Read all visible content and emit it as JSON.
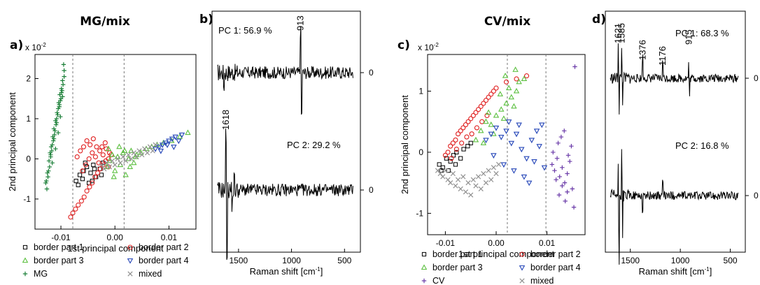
{
  "figure": {
    "left_title": "MG/mix",
    "right_title": "CV/mix",
    "panel_labels": {
      "a": "a)",
      "b": "b)",
      "c": "c)",
      "d": "d)"
    }
  },
  "chart_data": [
    {
      "panel": "a",
      "type": "scatter",
      "title": "MG/mix",
      "xlabel": "1st principal component",
      "ylabel": "2nd principal component",
      "multiplier": "x 10^-2",
      "xlim": [
        -0.0148,
        0.015
      ],
      "ylim": [
        -1.75,
        2.6
      ],
      "xticks": [
        {
          "v": -0.01,
          "label": "-0.01"
        },
        {
          "v": 0.0,
          "label": "0.00"
        },
        {
          "v": 0.01,
          "label": "0.01"
        }
      ],
      "yticks": [
        {
          "v": -1,
          "label": "-1"
        },
        {
          "v": 0,
          "label": "0"
        },
        {
          "v": 1,
          "label": "1"
        },
        {
          "v": 2,
          "label": "2"
        }
      ],
      "vlines": [
        -0.0078,
        0.0017
      ],
      "series": [
        {
          "name": "MG",
          "marker": "plus",
          "color": "#1a7f37",
          "x": [
            -0.0128,
            -0.0125,
            -0.0122,
            -0.012,
            -0.0118,
            -0.0115,
            -0.0113,
            -0.011,
            -0.0107,
            -0.0104,
            -0.0102,
            -0.0099,
            -0.0097,
            -0.0094,
            -0.0124,
            -0.0119,
            -0.0114,
            -0.0109,
            -0.0105,
            -0.01,
            -0.0096,
            -0.0126,
            -0.0121,
            -0.0117,
            -0.0112,
            -0.0108,
            -0.0103,
            -0.0098,
            -0.0123,
            -0.0116,
            -0.0111,
            -0.0106,
            -0.0101,
            -0.0095,
            -0.0127,
            -0.0119,
            -0.0113,
            -0.0108,
            -0.0103,
            -0.0099,
            -0.0094,
            -0.0116,
            -0.011,
            -0.0105,
            -0.0101,
            -0.0097
          ],
          "y": [
            -0.6,
            -0.35,
            -0.05,
            0.15,
            0.3,
            0.55,
            0.75,
            0.95,
            1.15,
            1.4,
            1.6,
            1.75,
            1.95,
            2.2,
            -0.45,
            0.05,
            0.45,
            0.85,
            1.25,
            1.5,
            1.85,
            -0.75,
            -0.2,
            0.2,
            0.6,
            1.0,
            1.3,
            1.7,
            -0.3,
            0.35,
            0.7,
            1.1,
            1.45,
            2.35,
            -0.55,
            0.1,
            0.5,
            0.9,
            1.35,
            1.65,
            2.05,
            -0.1,
            0.25,
            0.65,
            1.05,
            1.55
          ]
        },
        {
          "name": "border part 1",
          "marker": "square",
          "color": "#000000",
          "x": [
            -0.0072,
            -0.0065,
            -0.0058,
            -0.0052,
            -0.0045,
            -0.004,
            -0.0035,
            -0.0028,
            -0.0022,
            -0.0068,
            -0.006,
            -0.0048,
            -0.0038,
            -0.0025,
            -0.0055,
            -0.0042
          ],
          "y": [
            -0.55,
            -0.4,
            -0.3,
            -0.2,
            -0.35,
            -0.15,
            -0.45,
            -0.25,
            -0.1,
            -0.65,
            -0.5,
            -0.6,
            -0.25,
            -0.4,
            -0.1,
            -0.55
          ]
        },
        {
          "name": "border part 2",
          "marker": "circle",
          "color": "#e02020",
          "x": [
            -0.0082,
            -0.0078,
            -0.0073,
            -0.0068,
            -0.0062,
            -0.0057,
            -0.0052,
            -0.0047,
            -0.0042,
            -0.0037,
            -0.0032,
            -0.0027,
            -0.0022,
            -0.0017,
            -0.0012,
            -0.0007,
            -0.007,
            -0.0064,
            -0.0058,
            -0.0052,
            -0.0046,
            -0.004,
            -0.0034,
            -0.0028,
            -0.0022,
            -0.0016,
            -0.001,
            -0.006,
            -0.0054,
            -0.0048,
            -0.0042,
            -0.0036,
            -0.003,
            -0.0024,
            -0.0018,
            -0.0012
          ],
          "y": [
            -1.45,
            -1.35,
            -1.25,
            -1.15,
            -1.05,
            -0.95,
            -0.8,
            -0.7,
            -0.6,
            -0.45,
            -0.35,
            -0.25,
            -0.15,
            -0.05,
            0.0,
            0.1,
            0.05,
            0.2,
            0.3,
            0.45,
            0.35,
            0.5,
            0.3,
            0.2,
            0.1,
            0.25,
            0.15,
            -0.3,
            -0.15,
            0.0,
            0.15,
            0.05,
            -0.1,
            0.3,
            0.4,
            -0.2
          ]
        },
        {
          "name": "border part 3",
          "marker": "triangle-up",
          "color": "#5cc040",
          "x": [
            -0.0015,
            -0.001,
            -0.0005,
            0.0,
            0.0005,
            0.001,
            0.0015,
            0.002,
            0.0025,
            0.003,
            0.0035,
            0.004,
            -0.0012,
            -0.0002,
            0.0008,
            0.0018,
            0.0028,
            0.0038,
            0.0048,
            0.0058,
            0.0068,
            0.0078,
            0.009,
            0.0105,
            0.012,
            0.0135
          ],
          "y": [
            -0.2,
            -0.05,
            0.1,
            -0.3,
            0.05,
            -0.15,
            0.15,
            -0.4,
            0.0,
            0.2,
            -0.1,
            0.1,
            0.25,
            -0.45,
            0.3,
            0.2,
            -0.2,
            0.05,
            0.15,
            0.25,
            0.3,
            0.35,
            0.4,
            0.45,
            0.55,
            0.65
          ]
        },
        {
          "name": "border part 4",
          "marker": "triangle-down",
          "color": "#2546b8",
          "x": [
            0.0075,
            0.0082,
            0.0088,
            0.0094,
            0.01,
            0.0106,
            0.0112,
            0.0118,
            0.0124,
            0.0085,
            0.0097,
            0.0109
          ],
          "y": [
            0.25,
            0.3,
            0.35,
            0.4,
            0.45,
            0.5,
            0.55,
            0.45,
            0.6,
            0.2,
            0.35,
            0.3
          ]
        },
        {
          "name": "mixed",
          "marker": "cross",
          "color": "#909090",
          "x": [
            -0.0025,
            -0.0015,
            -0.0005,
            0.0005,
            0.0015,
            0.0025,
            0.0035,
            0.0045,
            0.0055,
            0.0065,
            0.0075,
            -0.002,
            -0.001,
            0.0,
            0.001,
            0.002,
            0.003,
            0.004,
            0.005,
            0.006,
            0.007
          ],
          "y": [
            -0.15,
            -0.1,
            -0.05,
            0.0,
            0.05,
            0.1,
            0.15,
            0.2,
            0.25,
            0.3,
            0.35,
            -0.25,
            -0.2,
            -0.15,
            -0.1,
            -0.05,
            0.0,
            0.05,
            0.1,
            0.15,
            0.2
          ]
        }
      ],
      "legend": [
        "border part 1",
        "border part 2",
        "border part 3",
        "border part 4",
        "MG",
        "mixed"
      ]
    },
    {
      "panel": "b",
      "type": "line",
      "xlabel": "Raman shift [cm-1]",
      "xticks": [
        {
          "v": 1500,
          "label": "1500"
        },
        {
          "v": 1000,
          "label": "1000"
        },
        {
          "v": 500,
          "label": "500"
        }
      ],
      "xlim": [
        1750,
        350
      ],
      "zero_label": "0",
      "series": [
        {
          "name": "PC 1",
          "label": "PC 1: 56.9 %",
          "peaks": [
            {
              "x": 913,
              "label": "913"
            }
          ]
        },
        {
          "name": "PC 2",
          "label": "PC 2: 29.2 %",
          "peaks": [
            {
              "x": 1618,
              "label": "1618"
            }
          ]
        }
      ]
    },
    {
      "panel": "c",
      "type": "scatter",
      "title": "CV/mix",
      "xlabel": "1st principal component",
      "ylabel": "2nd principal component",
      "multiplier": "x 10^-2",
      "xlim": [
        -0.0135,
        0.0175
      ],
      "ylim": [
        -1.35,
        1.6
      ],
      "xticks": [
        {
          "v": -0.01,
          "label": "-0.01"
        },
        {
          "v": 0.0,
          "label": "0.00"
        },
        {
          "v": 0.01,
          "label": "0.01"
        }
      ],
      "yticks": [
        {
          "v": -1,
          "label": "-1"
        },
        {
          "v": 0,
          "label": "0"
        },
        {
          "v": 1,
          "label": "1"
        }
      ],
      "vlines": [
        0.0022,
        0.0098
      ],
      "series": [
        {
          "name": "border part 1",
          "marker": "square",
          "color": "#000000",
          "x": [
            -0.0112,
            -0.0105,
            -0.0098,
            -0.009,
            -0.0084,
            -0.0078,
            -0.007,
            -0.0064,
            -0.0056,
            -0.005,
            -0.0108,
            -0.0094,
            -0.008
          ],
          "y": [
            -0.2,
            -0.25,
            -0.1,
            -0.15,
            -0.05,
            0.0,
            -0.1,
            0.05,
            0.1,
            0.15,
            -0.3,
            -0.3,
            -0.2
          ]
        },
        {
          "name": "border part 2",
          "marker": "circle",
          "color": "#e02020",
          "x": [
            -0.01,
            -0.0095,
            -0.009,
            -0.0085,
            -0.008,
            -0.0075,
            -0.007,
            -0.0065,
            -0.006,
            -0.0055,
            -0.005,
            -0.0045,
            -0.004,
            -0.0035,
            -0.003,
            -0.0025,
            -0.002,
            -0.0015,
            -0.001,
            -0.0005,
            0.0,
            0.002,
            0.004,
            0.006,
            -0.0088,
            -0.0078,
            -0.0068,
            -0.0058,
            -0.0048,
            -0.0038,
            -0.0028,
            -0.0018
          ],
          "y": [
            -0.05,
            0.0,
            0.1,
            0.15,
            0.2,
            0.3,
            0.35,
            0.4,
            0.45,
            0.5,
            0.55,
            0.6,
            0.65,
            0.7,
            0.75,
            0.8,
            0.85,
            0.9,
            0.95,
            1.0,
            1.05,
            1.15,
            1.2,
            1.25,
            -0.1,
            0.05,
            0.15,
            0.25,
            0.3,
            0.4,
            0.5,
            0.6
          ]
        },
        {
          "name": "border part 3",
          "marker": "triangle-up",
          "color": "#5cc040",
          "x": [
            -0.004,
            -0.003,
            -0.002,
            -0.001,
            0.0,
            0.001,
            0.002,
            0.003,
            0.004,
            -0.0025,
            -0.0005,
            0.0015,
            0.0035,
            0.0045,
            0.0008,
            -0.0015,
            0.0025,
            0.0055,
            0.0038,
            0.0018
          ],
          "y": [
            0.2,
            0.35,
            0.5,
            0.45,
            0.6,
            0.7,
            0.8,
            0.9,
            1.0,
            0.15,
            0.3,
            0.55,
            0.75,
            1.15,
            0.95,
            0.65,
            1.05,
            1.2,
            1.35,
            1.25
          ]
        },
        {
          "name": "border part 4",
          "marker": "triangle-down",
          "color": "#2546b8",
          "x": [
            -0.002,
            -0.001,
            0.0,
            0.001,
            0.002,
            0.003,
            0.004,
            0.005,
            0.006,
            0.007,
            0.008,
            0.009,
            -0.0005,
            0.0015,
            0.0035,
            0.0055,
            0.0075,
            0.0025,
            0.0045,
            0.0065,
            0.0085,
            0.0095
          ],
          "y": [
            0.2,
            0.3,
            0.4,
            0.25,
            0.35,
            0.15,
            0.3,
            0.05,
            -0.1,
            0.2,
            0.35,
            0.45,
            -0.05,
            -0.2,
            -0.3,
            -0.4,
            -0.15,
            0.5,
            0.45,
            -0.5,
            0.1,
            -0.25
          ]
        },
        {
          "name": "CV",
          "marker": "plus",
          "color": "#6a3aa8",
          "x": [
            0.011,
            0.0115,
            0.012,
            0.0125,
            0.013,
            0.0135,
            0.014,
            0.0145,
            0.015,
            0.0112,
            0.0118,
            0.0124,
            0.013,
            0.0136,
            0.0142,
            0.0148,
            0.0153,
            0.0122,
            0.0128,
            0.0134,
            0.014,
            0.0155
          ],
          "y": [
            -0.2,
            -0.3,
            -0.1,
            -0.4,
            -0.25,
            -0.5,
            -0.35,
            -0.15,
            -0.6,
            0.0,
            -0.45,
            -0.7,
            -0.55,
            -0.8,
            -0.05,
            0.1,
            -0.9,
            0.15,
            0.25,
            0.35,
            -0.65,
            1.4
          ]
        },
        {
          "name": "mixed",
          "marker": "cross",
          "color": "#909090",
          "x": [
            -0.0115,
            -0.011,
            -0.0105,
            -0.01,
            -0.0095,
            -0.009,
            -0.0085,
            -0.008,
            -0.0075,
            -0.007,
            -0.0065,
            -0.006,
            -0.0055,
            -0.005,
            -0.0045,
            -0.004,
            -0.0035,
            -0.003,
            -0.0025,
            -0.002,
            -0.0015,
            -0.001,
            -0.0005,
            0.0,
            0.0005
          ],
          "y": [
            -0.3,
            -0.35,
            -0.4,
            -0.3,
            -0.45,
            -0.5,
            -0.35,
            -0.55,
            -0.45,
            -0.6,
            -0.4,
            -0.65,
            -0.5,
            -0.7,
            -0.45,
            -0.55,
            -0.4,
            -0.6,
            -0.35,
            -0.5,
            -0.3,
            -0.45,
            -0.25,
            -0.35,
            -0.2
          ]
        }
      ],
      "legend": [
        "border part 1",
        "border part 2",
        "border part 3",
        "border part 4",
        "CV",
        "mixed"
      ]
    },
    {
      "panel": "d",
      "type": "line",
      "xlabel": "Raman shift [cm-1]",
      "xticks": [
        {
          "v": 1500,
          "label": "1500"
        },
        {
          "v": 1000,
          "label": "1000"
        },
        {
          "v": 500,
          "label": "500"
        }
      ],
      "xlim": [
        1750,
        350
      ],
      "zero_label": "0",
      "series": [
        {
          "name": "PC 1",
          "label": "PC 1: 68.3 %",
          "peaks": [
            {
              "x": 1621,
              "label": "1621"
            },
            {
              "x": 1585,
              "label": "1585"
            },
            {
              "x": 1376,
              "label": "1376"
            },
            {
              "x": 1176,
              "label": "1176"
            },
            {
              "x": 915,
              "label": "915"
            }
          ]
        },
        {
          "name": "PC 2",
          "label": "PC 2: 16.8 %",
          "peaks": []
        }
      ]
    }
  ]
}
